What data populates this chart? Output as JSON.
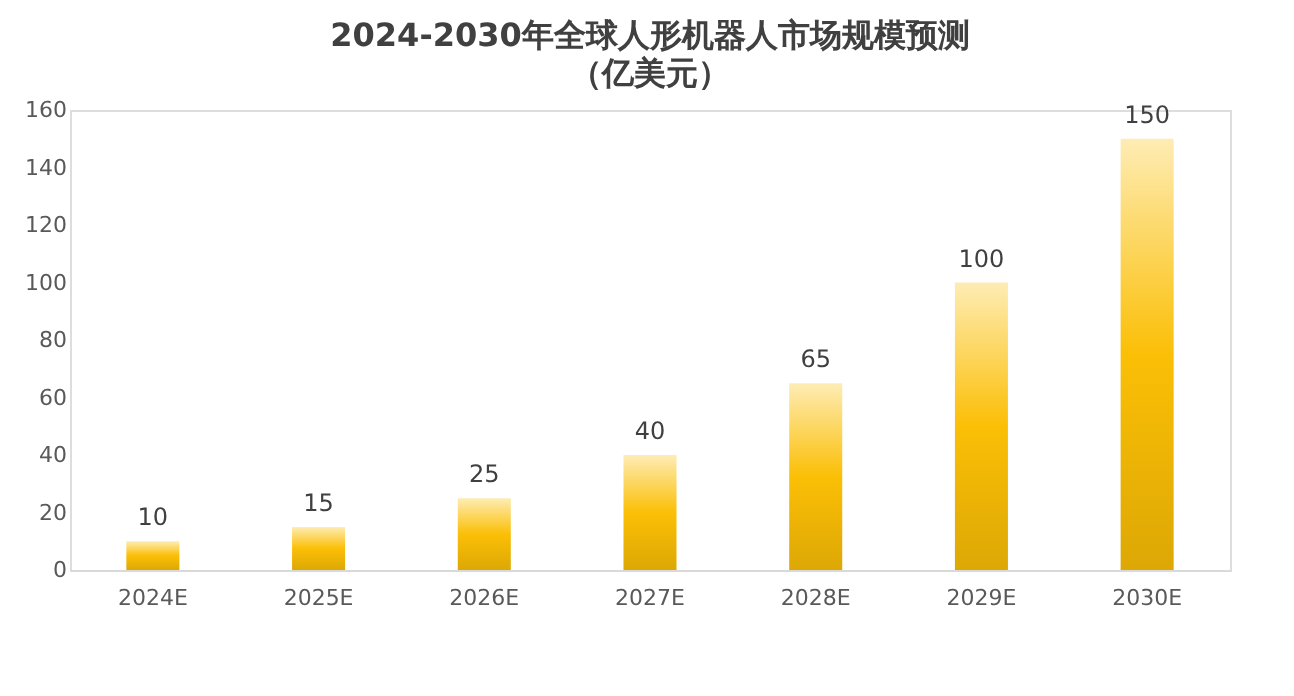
{
  "chart_data": {
    "type": "bar",
    "title": "2024-2030年全球人形机器人市场规模预测",
    "subtitle": "（亿美元）",
    "categories": [
      "2024E",
      "2025E",
      "2026E",
      "2027E",
      "2028E",
      "2029E",
      "2030E"
    ],
    "values": [
      10,
      15,
      25,
      40,
      65,
      100,
      150
    ],
    "color": "#fbbf06",
    "ylim": [
      0,
      160
    ],
    "yticks": [
      0,
      20,
      40,
      60,
      80,
      100,
      120,
      140,
      160
    ],
    "grid": false,
    "data_labels": true
  }
}
